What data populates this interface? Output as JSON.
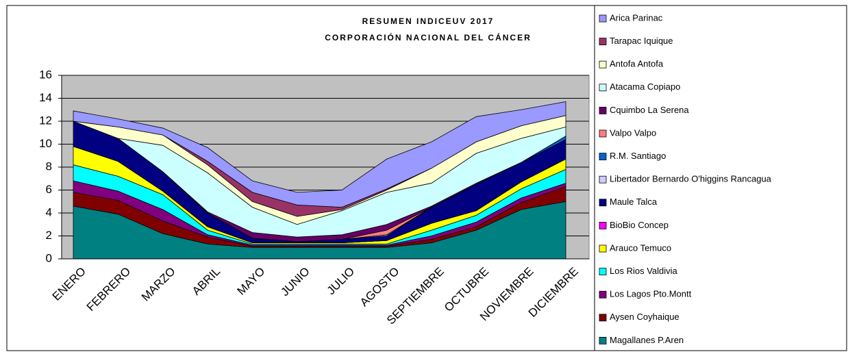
{
  "chart_data": {
    "type": "stacked_area",
    "title": "RESUMEN INDICEUV 2017",
    "subtitle": "CORPORACIÓN NACIONAL DEL CÁNCER",
    "categories": [
      "ENERO",
      "FEBRERO",
      "MARZO",
      "ABRIL",
      "MAYO",
      "JUNIO",
      "JULIO",
      "AGOSTO",
      "SEPTIEMBRE",
      "OCTUBRE",
      "NOVIEMBRE",
      "DICIEMBRE"
    ],
    "ylim": [
      0,
      16
    ],
    "yticks": [
      0,
      2,
      4,
      6,
      8,
      10,
      12,
      14,
      16
    ],
    "grid": true,
    "series": [
      {
        "name": "Arica Parinac",
        "color": "#9999ff",
        "values": [
          0.9,
          0.7,
          0.6,
          1.2,
          1.0,
          1.1,
          1.5,
          2.6,
          2.3,
          2.2,
          1.4,
          1.2
        ]
      },
      {
        "name": "Tarapac Iquique",
        "color": "#993366",
        "values": [
          0,
          0,
          0,
          0.3,
          0.8,
          1.0,
          0.2,
          0.1,
          0,
          0,
          0,
          0
        ]
      },
      {
        "name": "Antofa Antofa",
        "color": "#ffffcc",
        "values": [
          0,
          1.0,
          0.9,
          0.7,
          0.5,
          0.7,
          0.1,
          0.2,
          1.3,
          1.0,
          1.1,
          1.0
        ]
      },
      {
        "name": "Atacama Copiapo",
        "color": "#ccffff",
        "values": [
          0,
          0,
          2.3,
          3.4,
          2.2,
          1.1,
          2.1,
          2.8,
          2.0,
          2.6,
          2.1,
          0.8
        ]
      },
      {
        "name": "Cquimbo La Serena",
        "color": "#660066",
        "values": [
          0,
          0,
          0,
          0.1,
          0.5,
          0.4,
          0.4,
          0.5,
          0.1,
          0.1,
          0,
          0
        ]
      },
      {
        "name": "Valpo Valpo",
        "color": "#ff8080",
        "values": [
          0,
          0,
          0,
          0,
          0,
          0,
          0,
          0.4,
          0,
          0,
          0,
          0
        ]
      },
      {
        "name": "R.M. Santiago",
        "color": "#0066cc",
        "values": [
          0,
          0,
          0,
          0,
          0,
          0,
          0,
          0,
          0,
          0,
          0,
          0.3
        ]
      },
      {
        "name": "Libertador Bernardo O'higgins Rancagua",
        "color": "#ccccff",
        "values": [
          0,
          0,
          0,
          0,
          0,
          0,
          0,
          0.1,
          0,
          0,
          0,
          0
        ]
      },
      {
        "name": "Maule Talca",
        "color": "#000080",
        "values": [
          2.2,
          2.0,
          1.7,
          1.2,
          0.4,
          0.1,
          0.3,
          0.4,
          1.4,
          2.3,
          1.7,
          1.7
        ]
      },
      {
        "name": "BioBio Concep",
        "color": "#ff00ff",
        "values": [
          0,
          0,
          0,
          0,
          0,
          0,
          0,
          0,
          0,
          0,
          0,
          0
        ]
      },
      {
        "name": "Arauco Temuco",
        "color": "#ffff00",
        "values": [
          1.6,
          1.3,
          0.3,
          0.3,
          0.1,
          0.1,
          0.1,
          0.3,
          0.6,
          0.4,
          0.6,
          0.9
        ]
      },
      {
        "name": "Los Rios Valdivia",
        "color": "#00ffff",
        "values": [
          1.4,
          1.3,
          1.3,
          0.4,
          0.1,
          0.1,
          0.1,
          0.1,
          0.5,
          0.6,
          0.8,
          1.2
        ]
      },
      {
        "name": "Los Lagos Pto.Montt",
        "color": "#800080",
        "values": [
          1.0,
          0.8,
          1.0,
          0.2,
          0.1,
          0.1,
          0.1,
          0.1,
          0.3,
          0.4,
          0.4,
          0.3
        ]
      },
      {
        "name": "Aysen Coyhaique",
        "color": "#800000",
        "values": [
          1.2,
          1.2,
          1.1,
          0.6,
          0.1,
          0.1,
          0.1,
          0.1,
          0.3,
          0.3,
          0.6,
          1.3
        ]
      },
      {
        "name": "Magallanes P.Aren",
        "color": "#008080",
        "values": [
          4.6,
          3.9,
          2.2,
          1.3,
          1.0,
          1.0,
          1.0,
          1.0,
          1.4,
          2.5,
          4.3,
          5.0
        ]
      }
    ]
  }
}
